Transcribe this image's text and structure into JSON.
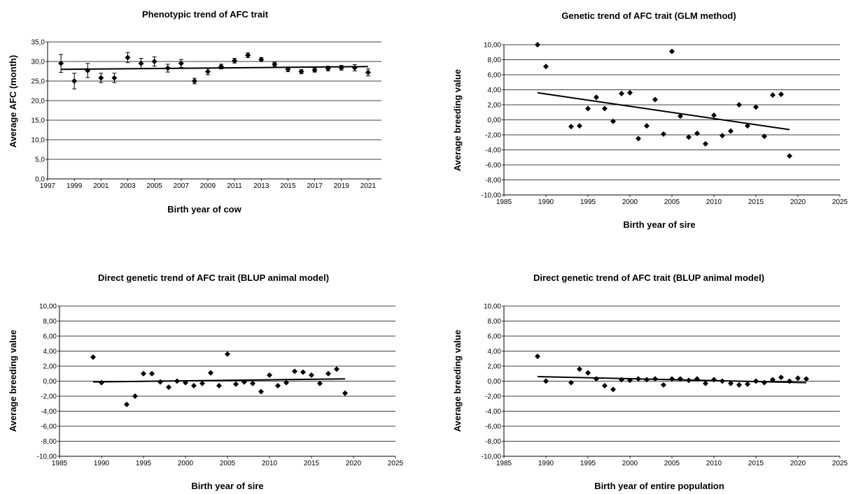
{
  "chart_data": [
    {
      "type": "scatter",
      "title": "Phenotypic trend of AFC trait",
      "xlabel": "Birth year of cow",
      "ylabel": "Average AFC (month)",
      "xlim": [
        1997,
        2022
      ],
      "ylim": [
        0,
        35
      ],
      "x_ticks": [
        "1997",
        "1999",
        "2001",
        "2003",
        "2005",
        "2007",
        "2009",
        "2011",
        "2013",
        "2015",
        "2017",
        "2019",
        "2021"
      ],
      "y_ticks": [
        "0,0",
        "5,0",
        "10,0",
        "15,0",
        "20,0",
        "25,0",
        "30,0",
        "35,0"
      ],
      "grid": "horizontal",
      "legend": "none",
      "error_bars": true,
      "series": [
        {
          "x": [
            1998,
            1999,
            2000,
            2001,
            2002,
            2003,
            2004,
            2005,
            2006,
            2007,
            2008,
            2009,
            2010,
            2011,
            2012,
            2013,
            2014,
            2015,
            2016,
            2017,
            2018,
            2019,
            2020,
            2021
          ],
          "values": [
            29.5,
            25.0,
            27.7,
            25.8,
            25.8,
            31.0,
            29.5,
            30.0,
            28.3,
            29.5,
            25.0,
            27.4,
            28.7,
            30.2,
            31.6,
            30.5,
            29.3,
            28.0,
            27.4,
            27.8,
            28.2,
            28.4,
            28.4,
            27.2
          ],
          "errors": [
            2.3,
            2.0,
            1.8,
            1.2,
            1.2,
            1.3,
            1.3,
            1.2,
            1.0,
            1.0,
            0.7,
            0.8,
            0.6,
            0.6,
            0.6,
            0.5,
            0.5,
            0.6,
            0.5,
            0.5,
            0.6,
            0.6,
            0.8,
            0.9
          ]
        }
      ],
      "trendline": {
        "x": [
          1998,
          2021
        ],
        "y": [
          28.0,
          28.7
        ]
      }
    },
    {
      "type": "scatter",
      "title": "Genetic trend of AFC trait (GLM method)",
      "xlabel": "Birth year of sire",
      "ylabel": "Average breeding value",
      "xlim": [
        1985,
        2025
      ],
      "ylim": [
        -10,
        10
      ],
      "x_ticks": [
        "1985",
        "1990",
        "1995",
        "2000",
        "2005",
        "2010",
        "2015",
        "2020",
        "2025"
      ],
      "y_ticks": [
        "-10,00",
        "-8,00",
        "-6,00",
        "-4,00",
        "-2,00",
        "0,00",
        "2,00",
        "4,00",
        "6,00",
        "8,00",
        "10,00"
      ],
      "grid": "horizontal",
      "legend": "none",
      "series": [
        {
          "x": [
            1989,
            1990,
            1993,
            1994,
            1995,
            1996,
            1997,
            1998,
            1999,
            2000,
            2001,
            2002,
            2003,
            2004,
            2005,
            2006,
            2007,
            2008,
            2009,
            2010,
            2011,
            2012,
            2013,
            2014,
            2015,
            2016,
            2017,
            2018,
            2019
          ],
          "values": [
            10.0,
            7.1,
            -0.9,
            -0.8,
            1.5,
            3.0,
            1.5,
            -0.2,
            3.5,
            3.6,
            -2.5,
            -0.8,
            2.7,
            -1.9,
            9.1,
            0.5,
            -2.3,
            -1.8,
            -3.2,
            0.6,
            -2.1,
            -1.5,
            2.0,
            -0.8,
            1.7,
            -2.2,
            3.3,
            3.4,
            -4.8
          ]
        }
      ],
      "trendline": {
        "x": [
          1989,
          2019
        ],
        "y": [
          3.6,
          -1.3
        ]
      }
    },
    {
      "type": "scatter",
      "title": "Direct genetic trend of AFC trait (BLUP animal model)",
      "xlabel": "Birth year of sire",
      "ylabel": "Average breeding value",
      "xlim": [
        1985,
        2025
      ],
      "ylim": [
        -10,
        10
      ],
      "x_ticks": [
        "1985",
        "1990",
        "1995",
        "2000",
        "2005",
        "2010",
        "2015",
        "2020",
        "2025"
      ],
      "y_ticks": [
        "-10,00",
        "-8,00",
        "-6,00",
        "-4,00",
        "-2,00",
        "0,00",
        "2,00",
        "4,00",
        "6,00",
        "8,00",
        "10,00"
      ],
      "grid": "horizontal",
      "legend": "none",
      "series": [
        {
          "x": [
            1989,
            1990,
            1993,
            1994,
            1995,
            1996,
            1997,
            1998,
            1999,
            2000,
            2001,
            2002,
            2003,
            2004,
            2005,
            2006,
            2007,
            2008,
            2009,
            2010,
            2011,
            2012,
            2013,
            2014,
            2015,
            2016,
            2017,
            2018,
            2019
          ],
          "values": [
            3.2,
            -0.2,
            -3.1,
            -2.0,
            1.0,
            1.0,
            -0.1,
            -0.8,
            0.0,
            -0.2,
            -0.6,
            -0.3,
            1.1,
            -0.6,
            3.6,
            -0.4,
            -0.1,
            -0.3,
            -1.4,
            0.8,
            -0.6,
            -0.2,
            1.3,
            1.2,
            0.8,
            -0.3,
            1.0,
            1.6,
            -1.6
          ]
        }
      ],
      "trendline": {
        "x": [
          1989,
          2019
        ],
        "y": [
          -0.1,
          0.3
        ]
      }
    },
    {
      "type": "scatter",
      "title": "Direct genetic trend of AFC trait (BLUP animal model)",
      "xlabel": "Birth year of entire population",
      "ylabel": "Average breeding value",
      "xlim": [
        1985,
        2025
      ],
      "ylim": [
        -10,
        10
      ],
      "x_ticks": [
        "1985",
        "1990",
        "1995",
        "2000",
        "2005",
        "2010",
        "2015",
        "2020",
        "2025"
      ],
      "y_ticks": [
        "-10,00",
        "-8,00",
        "-6,00",
        "-4,00",
        "-2,00",
        "0,00",
        "2,00",
        "4,00",
        "6,00",
        "8,00",
        "10,00"
      ],
      "grid": "horizontal",
      "legend": "none",
      "series": [
        {
          "x": [
            1989,
            1990,
            1993,
            1994,
            1995,
            1996,
            1997,
            1998,
            1999,
            2000,
            2001,
            2002,
            2003,
            2004,
            2005,
            2006,
            2007,
            2008,
            2009,
            2010,
            2011,
            2012,
            2013,
            2014,
            2015,
            2016,
            2017,
            2018,
            2019,
            2020,
            2021
          ],
          "values": [
            3.3,
            0.0,
            -0.2,
            1.6,
            1.1,
            0.3,
            -0.6,
            -1.1,
            0.2,
            0.1,
            0.3,
            0.2,
            0.3,
            -0.5,
            0.3,
            0.3,
            0.1,
            0.3,
            -0.3,
            0.2,
            0.0,
            -0.3,
            -0.5,
            -0.4,
            0.0,
            -0.2,
            0.2,
            0.5,
            0.0,
            0.4,
            0.3
          ]
        }
      ],
      "trendline": {
        "x": [
          1989,
          2021
        ],
        "y": [
          0.6,
          -0.2
        ]
      }
    }
  ]
}
